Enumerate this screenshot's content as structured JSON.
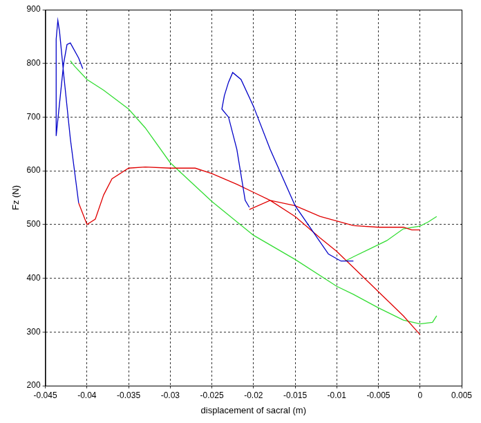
{
  "chart_data": {
    "type": "line",
    "x_label": "displacement of sacral (m)",
    "y_label": "Fz (N)",
    "xlim": [
      -0.045,
      0.005
    ],
    "xticks": [
      -0.045,
      -0.04,
      -0.035,
      -0.03,
      -0.025,
      -0.02,
      -0.015,
      -0.01,
      -0.005,
      0,
      0.005
    ],
    "ylim": [
      200,
      900
    ],
    "yticks": [
      200,
      300,
      400,
      500,
      600,
      700,
      800,
      900
    ],
    "grid": true,
    "series": [
      {
        "color": "#0000c8",
        "x": [
          -0.0205,
          -0.021,
          -0.022,
          -0.023,
          -0.0238,
          -0.0235,
          -0.023,
          -0.0225,
          -0.0215,
          -0.02,
          -0.018,
          -0.016,
          -0.015,
          -0.013,
          -0.011,
          -0.0095,
          -0.008,
          null,
          -0.041,
          -0.042,
          -0.0428,
          -0.0433,
          -0.0435,
          -0.0437,
          -0.0437,
          -0.0432,
          -0.0428,
          -0.0424,
          -0.042,
          -0.041,
          -0.0405
        ],
        "values": [
          532,
          545,
          640,
          700,
          715,
          740,
          765,
          783,
          770,
          720,
          640,
          570,
          535,
          490,
          445,
          432,
          432,
          null,
          540,
          660,
          780,
          860,
          880,
          845,
          665,
          740,
          800,
          835,
          838,
          810,
          790
        ]
      },
      {
        "color": "#e00000",
        "x": [
          0,
          -0.002,
          -0.005,
          -0.008,
          -0.01,
          -0.012,
          -0.015,
          -0.018,
          -0.02,
          -0.022,
          -0.025,
          -0.027,
          -0.03,
          -0.033,
          -0.035,
          -0.037,
          -0.038,
          -0.039,
          -0.04,
          -0.0405,
          -0.041,
          null,
          -0.0205,
          -0.018,
          -0.015,
          -0.012,
          -0.008,
          -0.005,
          -0.002,
          -0.001,
          0
        ],
        "values": [
          295,
          330,
          375,
          420,
          450,
          475,
          515,
          545,
          560,
          575,
          595,
          605,
          605,
          607,
          605,
          585,
          555,
          510,
          500,
          520,
          540,
          null,
          528,
          545,
          535,
          515,
          498,
          495,
          495,
          490,
          490
        ]
      },
      {
        "color": "#33dd33",
        "x": [
          0.002,
          0.0015,
          0,
          -0.002,
          -0.005,
          -0.008,
          -0.01,
          -0.015,
          -0.02,
          -0.025,
          -0.03,
          -0.033,
          -0.035,
          -0.038,
          -0.04,
          -0.0415,
          -0.042,
          null,
          -0.009,
          -0.008,
          -0.006,
          -0.004,
          -0.002,
          0,
          0.001,
          0.002
        ],
        "values": [
          330,
          318,
          315,
          322,
          345,
          370,
          385,
          435,
          480,
          543,
          615,
          680,
          715,
          750,
          770,
          795,
          805,
          null,
          432,
          440,
          455,
          470,
          492,
          497,
          505,
          515
        ]
      }
    ]
  }
}
